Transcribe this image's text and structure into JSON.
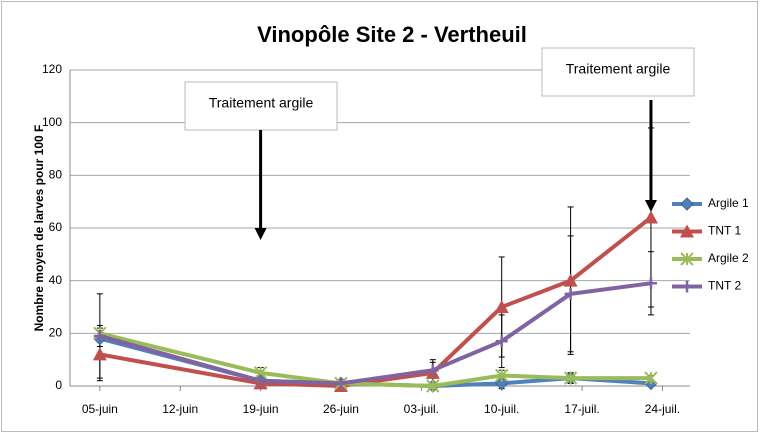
{
  "chart_data": {
    "type": "line",
    "title": "Vinopôle Site 2 - Vertheuil",
    "y_label": "Nombre moyen de larves pour 100 F",
    "annotations": [
      {
        "text": "Traitement argile",
        "x": 19
      },
      {
        "text": "Traitement argile",
        "x": 53
      }
    ],
    "x": [
      5,
      19,
      26,
      34,
      40,
      46,
      53
    ],
    "xlim": [
      2.4,
      56.4
    ],
    "xticks": [
      {
        "value": 5,
        "label": "05-juin"
      },
      {
        "value": 12,
        "label": "12-juin"
      },
      {
        "value": 19,
        "label": "19-juin"
      },
      {
        "value": 26,
        "label": "26-juin"
      },
      {
        "value": 33,
        "label": "03-juil."
      },
      {
        "value": 40,
        "label": "10-juil."
      },
      {
        "value": 47,
        "label": "17-juil."
      },
      {
        "value": 54,
        "label": "24-juil."
      }
    ],
    "ylim": [
      0,
      120
    ],
    "yticks": [
      0,
      20,
      40,
      60,
      80,
      100,
      120
    ],
    "legend": "right",
    "series": [
      {
        "name": "Argile 1",
        "color": "#4f81bd",
        "marker": "diamond",
        "values": [
          18,
          2,
          1,
          0,
          1,
          3,
          1
        ],
        "errors": [
          3,
          1,
          0,
          0,
          2,
          2,
          1
        ]
      },
      {
        "name": "TNT 1",
        "color": "#c0504d",
        "marker": "triangle",
        "values": [
          12,
          1,
          0,
          5,
          30,
          40,
          64
        ],
        "errors": [
          10,
          1,
          0,
          5,
          19,
          28,
          34
        ]
      },
      {
        "name": "Argile 2",
        "color": "#9bbb59",
        "marker": "cross",
        "values": [
          20,
          5,
          1,
          0,
          4,
          3,
          3
        ],
        "errors": [
          3,
          2,
          0,
          0,
          2,
          2,
          1
        ]
      },
      {
        "name": "TNT 2",
        "color": "#8064a2",
        "marker": "plus",
        "values": [
          19,
          2,
          1,
          6,
          17,
          35,
          39
        ],
        "errors": [
          16,
          2,
          1,
          3,
          10,
          22,
          12
        ]
      }
    ]
  }
}
